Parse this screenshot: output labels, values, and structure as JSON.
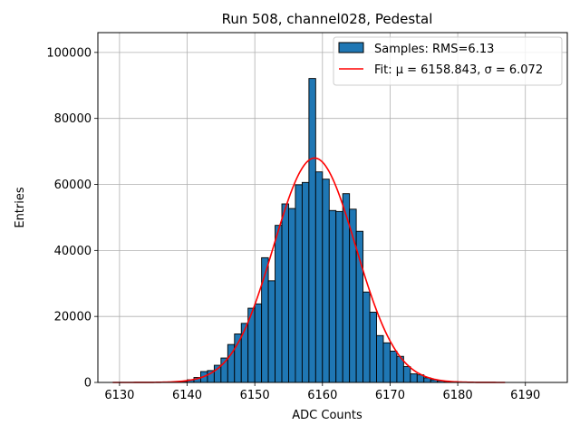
{
  "chart_data": {
    "type": "bar",
    "title": "Run 508, channel028, Pedestal",
    "xlabel": "ADC Counts",
    "ylabel": "Entries",
    "xlim": [
      6126.8,
      6196.2
    ],
    "ylim": [
      0,
      106000
    ],
    "grid": true,
    "legend_position": "top-right",
    "x_ticks": [
      6130,
      6140,
      6150,
      6160,
      6170,
      6180,
      6190
    ],
    "y_ticks": [
      0,
      20000,
      40000,
      60000,
      80000,
      100000
    ],
    "bin_width": 1,
    "bins_x": [
      6139,
      6140,
      6141,
      6142,
      6143,
      6144,
      6145,
      6146,
      6147,
      6148,
      6149,
      6150,
      6151,
      6152,
      6153,
      6154,
      6155,
      6156,
      6157,
      6158,
      6159,
      6160,
      6161,
      6162,
      6163,
      6164,
      6165,
      6166,
      6167,
      6168,
      6169,
      6170,
      6171,
      6172,
      6173,
      6174,
      6175,
      6176,
      6177,
      6178,
      6179,
      6180
    ],
    "series": [
      {
        "name": "Samples: RMS=6.13",
        "color": "#1f77b4",
        "edgecolor": "#000000",
        "values": [
          300,
          800,
          1500,
          3300,
          3600,
          5200,
          7400,
          11500,
          14700,
          17900,
          22500,
          23800,
          37800,
          30800,
          47600,
          54100,
          52700,
          59900,
          60600,
          92100,
          63800,
          61600,
          52100,
          51800,
          57200,
          52500,
          45800,
          27400,
          21300,
          14200,
          12000,
          9500,
          7900,
          4800,
          2600,
          2300,
          1400,
          800,
          500,
          300,
          200,
          100
        ]
      },
      {
        "name": "Fit: μ = 6158.843, σ = 6.072",
        "type": "line",
        "color": "#ff0000",
        "mu": 6158.843,
        "sigma": 6.072,
        "amplitude": 68000,
        "x_range": [
          6129,
          6187
        ]
      }
    ]
  }
}
